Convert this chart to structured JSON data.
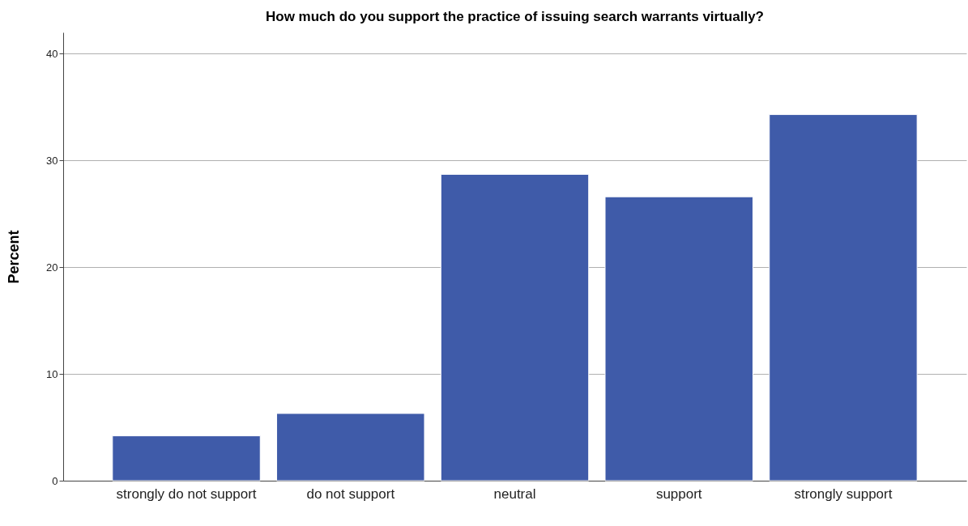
{
  "chart_data": {
    "type": "bar",
    "title": "How much do you support the practice of issuing search warrants virtually?",
    "ylabel": "Percent",
    "categories": [
      "strongly do not support",
      "do not support",
      "neutral",
      "support",
      "strongly support"
    ],
    "values": [
      4.2,
      6.3,
      28.7,
      26.6,
      34.3
    ],
    "color": "#3f5ba9",
    "ylim": [
      0,
      42
    ],
    "yticks": [
      0,
      10,
      20,
      30,
      40
    ],
    "grid": "y"
  }
}
